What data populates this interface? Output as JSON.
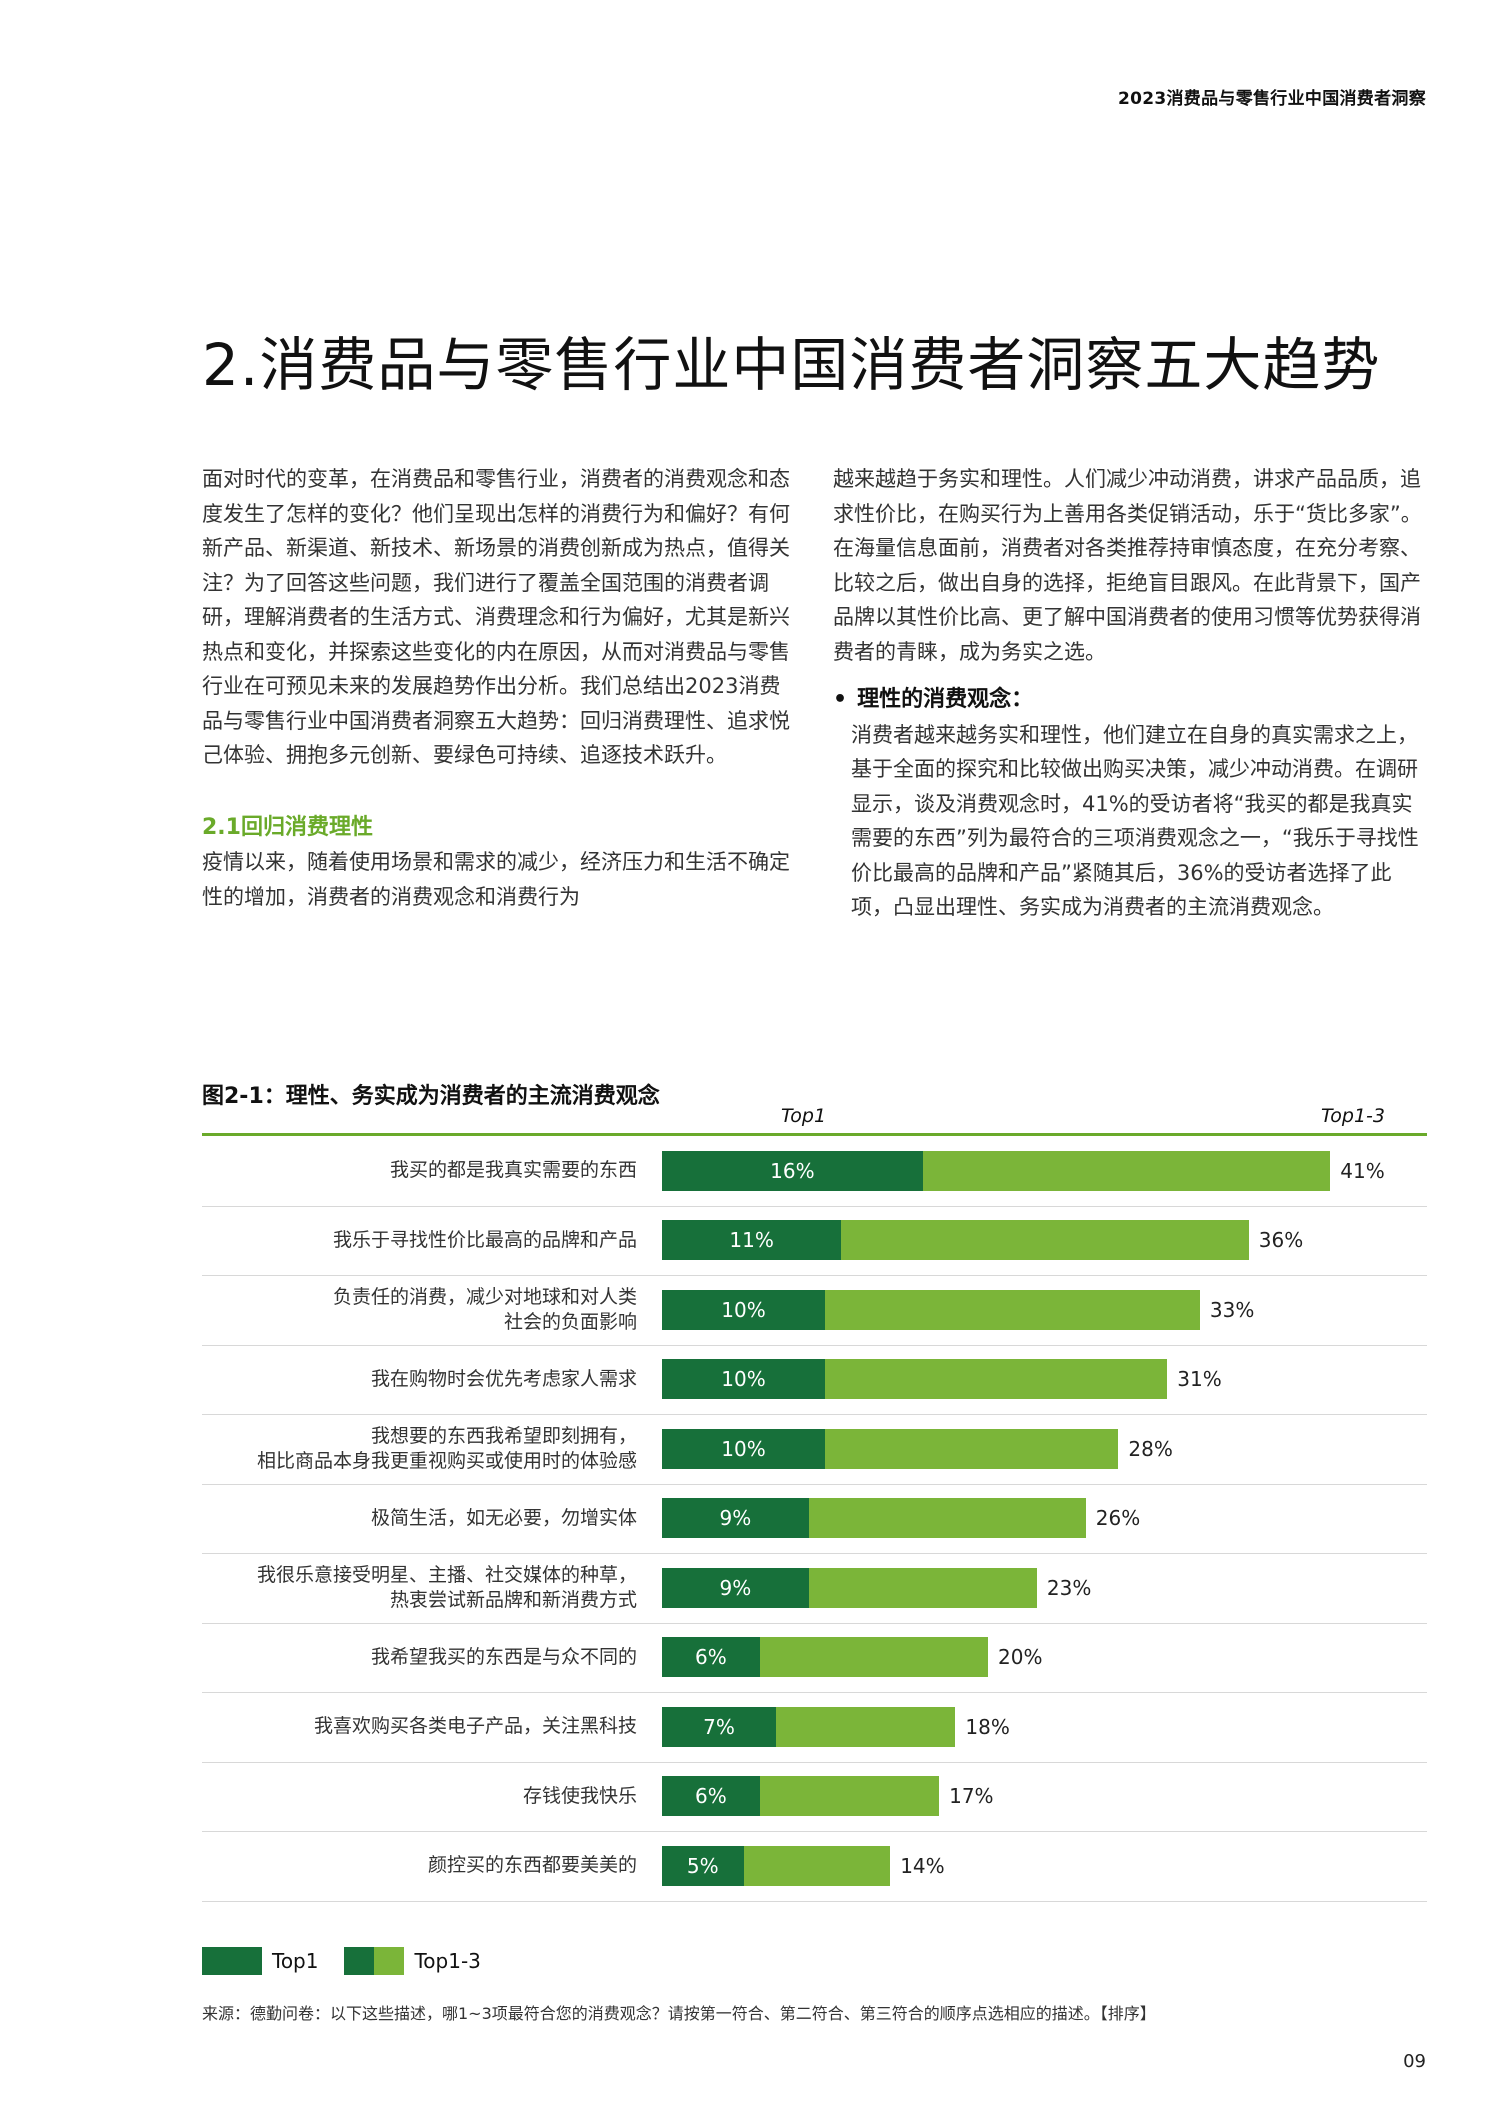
{
  "header": {
    "running_title": "2023消费品与零售行业中国消费者洞察"
  },
  "page_title": "2.消费品与零售行业中国消费者洞察五大趋势",
  "body": {
    "left_paragraph": "面对时代的变革，在消费品和零售行业，消费者的消费观念和态度发生了怎样的变化？他们呈现出怎样的消费行为和偏好？有何新产品、新渠道、新技术、新场景的消费创新成为热点，值得关注？为了回答这些问题，我们进行了覆盖全国范围的消费者调研，理解消费者的生活方式、消费理念和行为偏好，尤其是新兴热点和变化，并探索这些变化的内在原因，从而对消费品与零售行业在可预见未来的发展趋势作出分析。我们总结出2023消费品与零售行业中国消费者洞察五大趋势：回归消费理性、追求悦己体验、拥抱多元创新、要绿色可持续、追逐技术跃升。",
    "subheading": "2.1回归消费理性",
    "left_paragraph_2": "疫情以来，随着使用场景和需求的减少，经济压力和生活不确定性的增加，消费者的消费观念和消费行为",
    "right_paragraph": "越来越趋于务实和理性。人们减少冲动消费，讲求产品品质，追求性价比，在购买行为上善用各类促销活动，乐于“货比多家”。在海量信息面前，消费者对各类推荐持审慎态度，在充分考察、比较之后，做出自身的选择，拒绝盲目跟风。在此背景下，国产品牌以其性价比高、更了解中国消费者的使用习惯等优势获得消费者的青睐，成为务实之选。",
    "bullet_title": "理性的消费观念：",
    "bullet_body": "消费者越来越务实和理性，他们建立在自身的真实需求之上，基于全面的探究和比较做出购买决策，减少冲动消费。在调研显示，谈及消费观念时，41%的受访者将“我买的都是我真实需要的东西”列为最符合的三项消费观念之一，“我乐于寻找性价比最高的品牌和产品”紧随其后，36%的受访者选择了此项，凸显出理性、务实成为消费者的主流消费观念。"
  },
  "figure": {
    "title": "图2-1：理性、务实成为消费者的主流消费观念",
    "col_top1": "Top1",
    "col_top13": "Top1-3",
    "legend": {
      "top1": "Top1",
      "top13": "Top1-3"
    },
    "source": "来源：德勤问卷：以下这些描述，哪1~3项最符合您的消费观念？请按第一符合、第二符合、第三符合的顺序点选相应的描述。【排序】"
  },
  "chart_data": {
    "type": "bar",
    "orientation": "horizontal",
    "unit": "%",
    "categories": [
      "我买的都是我真实需要的东西",
      "我乐于寻找性价比最高的品牌和产品",
      "负责任的消费，减少对地球和对人类\n社会的负面影响",
      "我在购物时会优先考虑家人需求",
      "我想要的东西我希望即刻拥有，\n相比商品本身我更重视购买或使用时的体验感",
      "极简生活，如无必要，勿增实体",
      "我很乐意接受明星、主播、社交媒体的种草，\n热衷尝试新品牌和新消费方式",
      "我希望我买的东西是与众不同的",
      "我喜欢购买各类电子产品，关注黑科技",
      "存钱使我快乐",
      "颜控买的东西都要美美的"
    ],
    "series": [
      {
        "name": "Top1",
        "values": [
          16,
          11,
          10,
          10,
          10,
          9,
          9,
          6,
          7,
          6,
          5
        ],
        "labels": [
          "16%",
          "11%",
          "10%",
          "10%",
          "10%",
          "9%",
          "9%",
          "6%",
          "7%",
          "6%",
          "5%"
        ]
      },
      {
        "name": "Top1-3",
        "values": [
          41,
          36,
          33,
          31,
          28,
          26,
          23,
          20,
          18,
          17,
          14
        ],
        "labels": [
          "41%",
          "36%",
          "33%",
          "31%",
          "28%",
          "26%",
          "23%",
          "20%",
          "18%",
          "17%",
          "14%"
        ]
      }
    ],
    "xlim": [
      0,
      45
    ],
    "colors": {
      "top1": "#17703a",
      "top13": "#7bb539",
      "rule": "#6aaa2a"
    },
    "legend_position": "bottom-left"
  },
  "footer": {
    "page_number": "09"
  }
}
